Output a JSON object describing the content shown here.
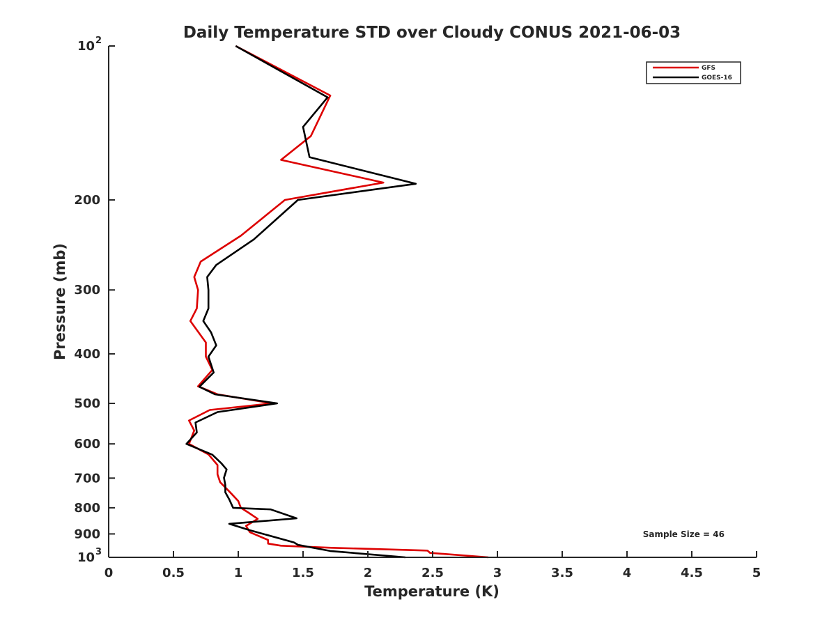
{
  "chart_data": {
    "type": "line",
    "title": "Daily Temperature STD over Cloudy CONUS 2021-06-03",
    "xlabel": "Temperature (K)",
    "ylabel": "Pressure (mb)",
    "xlim": [
      0,
      5
    ],
    "ylim": [
      100,
      1000
    ],
    "y_scale": "log",
    "y_reversed": true,
    "x_ticks": [
      "0",
      "0.5",
      "1",
      "1.5",
      "2",
      "2.5",
      "3",
      "3.5",
      "4",
      "4.5",
      "5"
    ],
    "y_ticks": [
      {
        "value": 100,
        "label": "10",
        "sup": "2"
      },
      {
        "value": 200,
        "label": "200",
        "sup": ""
      },
      {
        "value": 300,
        "label": "300",
        "sup": ""
      },
      {
        "value": 400,
        "label": "400",
        "sup": ""
      },
      {
        "value": 500,
        "label": "500",
        "sup": ""
      },
      {
        "value": 600,
        "label": "600",
        "sup": ""
      },
      {
        "value": 700,
        "label": "700",
        "sup": ""
      },
      {
        "value": 800,
        "label": "800",
        "sup": ""
      },
      {
        "value": 900,
        "label": "900",
        "sup": ""
      },
      {
        "value": 1000,
        "label": "10",
        "sup": "3"
      }
    ],
    "grid": false,
    "legend_position": "top-right",
    "annotation": "Sample Size = 46",
    "series": [
      {
        "name": "GFS",
        "color": "#dd0000",
        "points": [
          [
            0.98,
            100
          ],
          [
            1.71,
            125
          ],
          [
            1.56,
            150
          ],
          [
            1.33,
            167
          ],
          [
            2.12,
            185
          ],
          [
            1.36,
            200
          ],
          [
            1.02,
            235
          ],
          [
            0.71,
            264
          ],
          [
            0.66,
            283
          ],
          [
            0.69,
            300
          ],
          [
            0.68,
            326
          ],
          [
            0.63,
            345
          ],
          [
            0.75,
            380
          ],
          [
            0.75,
            405
          ],
          [
            0.8,
            430
          ],
          [
            0.69,
            463
          ],
          [
            0.84,
            480
          ],
          [
            1.26,
            500
          ],
          [
            0.78,
            515
          ],
          [
            0.62,
            540
          ],
          [
            0.66,
            565
          ],
          [
            0.62,
            600
          ],
          [
            0.77,
            629
          ],
          [
            0.84,
            660
          ],
          [
            0.84,
            688
          ],
          [
            0.86,
            713
          ],
          [
            0.93,
            743
          ],
          [
            1.0,
            776
          ],
          [
            1.02,
            800
          ],
          [
            1.08,
            818
          ],
          [
            1.15,
            841
          ],
          [
            1.06,
            868
          ],
          [
            1.09,
            893
          ],
          [
            1.23,
            925
          ],
          [
            1.23,
            940
          ],
          [
            1.33,
            949
          ],
          [
            1.72,
            958
          ],
          [
            2.46,
            970
          ],
          [
            2.48,
            980
          ],
          [
            2.93,
            1000
          ]
        ]
      },
      {
        "name": "GOES-16",
        "color": "#000000",
        "points": [
          [
            0.98,
            100
          ],
          [
            1.69,
            126
          ],
          [
            1.5,
            144
          ],
          [
            1.55,
            165
          ],
          [
            2.37,
            186
          ],
          [
            1.46,
            200
          ],
          [
            1.12,
            239
          ],
          [
            0.83,
            268
          ],
          [
            0.76,
            283
          ],
          [
            0.77,
            300
          ],
          [
            0.77,
            326
          ],
          [
            0.73,
            345
          ],
          [
            0.79,
            363
          ],
          [
            0.83,
            385
          ],
          [
            0.77,
            405
          ],
          [
            0.81,
            435
          ],
          [
            0.7,
            464
          ],
          [
            0.82,
            480
          ],
          [
            1.3,
            500
          ],
          [
            0.84,
            520
          ],
          [
            0.67,
            545
          ],
          [
            0.68,
            570
          ],
          [
            0.6,
            600
          ],
          [
            0.8,
            630
          ],
          [
            0.87,
            655
          ],
          [
            0.91,
            673
          ],
          [
            0.89,
            699
          ],
          [
            0.9,
            722
          ],
          [
            0.9,
            746
          ],
          [
            0.93,
            770
          ],
          [
            0.96,
            800
          ],
          [
            1.25,
            806
          ],
          [
            1.45,
            839
          ],
          [
            0.93,
            860
          ],
          [
            1.09,
            885
          ],
          [
            1.43,
            935
          ],
          [
            1.46,
            945
          ],
          [
            1.57,
            957
          ],
          [
            1.71,
            972
          ],
          [
            2.29,
            1000
          ]
        ]
      }
    ]
  }
}
